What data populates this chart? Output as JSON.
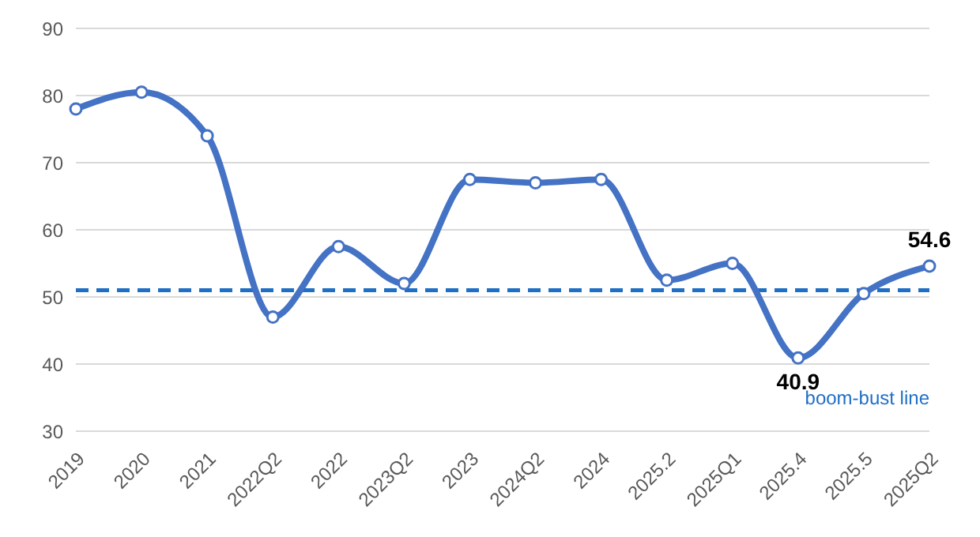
{
  "chart_data": {
    "type": "line",
    "categories": [
      "2019",
      "2020",
      "2021",
      "2022Q2",
      "2022",
      "2023Q2",
      "2023",
      "2024Q2",
      "2024",
      "2025.2",
      "2025Q1",
      "2025.4",
      "2025.5",
      "2025Q2"
    ],
    "series": [
      {
        "color": "#4472c4",
        "values": [
          78,
          80.5,
          74,
          47,
          57.5,
          52,
          67.5,
          67,
          67.5,
          52.5,
          55,
          40.9,
          50.5,
          54.6
        ],
        "value_labels": [
          null,
          null,
          null,
          null,
          null,
          null,
          null,
          null,
          null,
          null,
          null,
          "40.9",
          null,
          "54.6"
        ]
      }
    ],
    "ylim": [
      30,
      90
    ],
    "yticks": [
      30,
      40,
      50,
      60,
      70,
      80,
      90
    ],
    "grid": "y",
    "marker": "circle",
    "line_style": "solid",
    "ref_lines": [
      {
        "axis": "y",
        "value": 51,
        "label": "boom-bust line",
        "color": "#1f6fc6",
        "line_style": "dashed"
      }
    ]
  }
}
